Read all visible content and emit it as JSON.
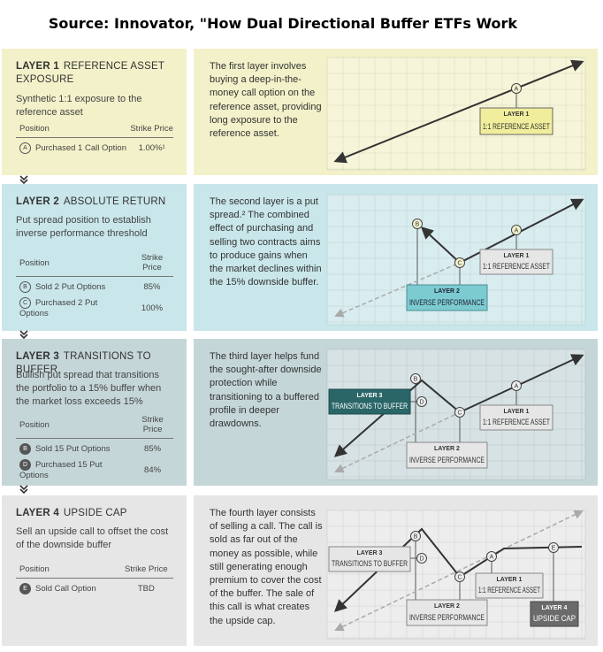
{
  "title": "Source: Innovator, \"How Dual Directional Buffer ETFs Work",
  "layers": [
    {
      "number": "LAYER 1",
      "name": "REFERENCE ASSET EXPOSURE",
      "summary": "Synthetic 1:1 exposure to the reference asset",
      "columns": [
        "Position",
        "Strike Price"
      ],
      "rows": [
        [
          "A",
          "Purchased 1 Call Option",
          "1.00%¹"
        ]
      ],
      "description": "The first layer involves buying a deep-in-the-money call option on the reference asset, providing long exposure to the reference asset.",
      "diagram": {
        "points": [
          "A"
        ],
        "boxes": [
          [
            "LAYER 1",
            "1:1 REFERENCE ASSET"
          ]
        ]
      }
    },
    {
      "number": "LAYER 2",
      "name": "ABSOLUTE RETURN",
      "summary": "Put spread position to establish inverse performance threshold",
      "columns": [
        "Position",
        "Strike Price"
      ],
      "rows": [
        [
          "B",
          "Sold 2 Put Options",
          "85%"
        ],
        [
          "C",
          "Purchased 2 Put Options",
          "100%"
        ]
      ],
      "description": "The second layer is a put spread.² The combined effect of purchasing and selling two contracts aims to produce gains when the market declines within the 15% downside buffer.",
      "diagram": {
        "points": [
          "B",
          "A",
          "C"
        ],
        "boxes": [
          [
            "LAYER 1",
            "1:1 REFERENCE ASSET"
          ],
          [
            "LAYER 2",
            "INVERSE PERFORMANCE"
          ]
        ]
      }
    },
    {
      "number": "LAYER 3",
      "name": "TRANSITIONS TO BUFFER",
      "summary": "Bullish put spread that transitions the portfolio to a 15% buffer when the market loss exceeds 15%",
      "columns": [
        "Position",
        "Strike Price"
      ],
      "rows": [
        [
          "B",
          "Sold 15 Put Options",
          "85%"
        ],
        [
          "D",
          "Purchased 15 Put Options",
          "84%"
        ]
      ],
      "description": "The third layer helps fund the sought-after downside protection while transitioning to a buffered profile in deeper drawdowns.",
      "diagram": {
        "points": [
          "B",
          "D",
          "A",
          "C"
        ],
        "boxes": [
          [
            "LAYER 3",
            "TRANSITIONS TO BUFFER"
          ],
          [
            "LAYER 1",
            "1:1 REFERENCE ASSET"
          ],
          [
            "LAYER 2",
            "INVERSE PERFORMANCE"
          ]
        ]
      }
    },
    {
      "number": "LAYER 4",
      "name": "UPSIDE CAP",
      "summary": "Sell an upside call to offset the cost of the downside buffer",
      "columns": [
        "Position",
        "Strike Price"
      ],
      "rows": [
        [
          "E",
          "Sold Call Option",
          "TBD"
        ]
      ],
      "description": "The fourth layer consists of selling a call. The call is sold as far out of the money as possible, while still generating enough premium to cover the cost of the buffer. The sale of this call is what creates the upside cap.",
      "diagram": {
        "points": [
          "B",
          "D",
          "A",
          "C",
          "E"
        ],
        "boxes": [
          [
            "LAYER 3",
            "TRANSITIONS TO BUFFER"
          ],
          [
            "LAYER 1",
            "1:1 REFERENCE ASSET"
          ],
          [
            "LAYER 2",
            "INVERSE PERFORMANCE"
          ],
          [
            "LAYER 4",
            "UPSIDE CAP"
          ]
        ]
      }
    }
  ]
}
